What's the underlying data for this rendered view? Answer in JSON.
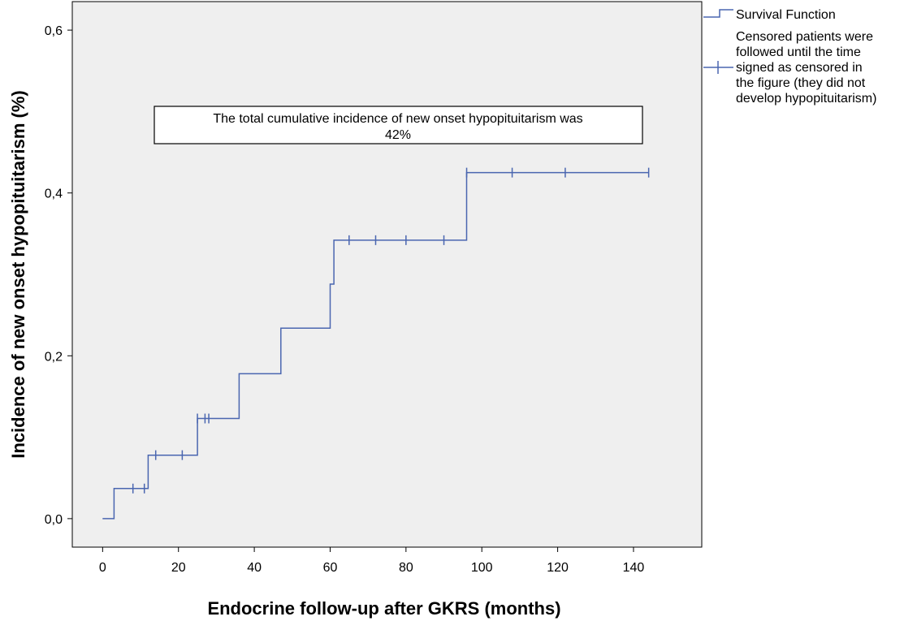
{
  "chart_data": {
    "type": "line",
    "step": true,
    "xlabel": "Endocrine follow-up after GKRS (months)",
    "ylabel": "Incidence of new onset hypopituitarism (%)",
    "xlim": [
      -8,
      158
    ],
    "ylim": [
      -0.035,
      0.635
    ],
    "xticks": [
      0,
      20,
      40,
      60,
      80,
      100,
      120,
      140
    ],
    "xtick_labels": [
      "0",
      "20",
      "40",
      "60",
      "80",
      "100",
      "120",
      "140"
    ],
    "yticks": [
      0.0,
      0.2,
      0.4,
      0.6
    ],
    "ytick_labels": [
      "0,0",
      "0,2",
      "0,4",
      "0,6"
    ],
    "grid": false,
    "plot_background": "#efefef",
    "line_color": "#4a66b0",
    "series": [
      {
        "name": "Survival Function",
        "x": [
          0,
          3,
          12,
          25,
          36,
          47,
          60,
          61,
          96,
          144
        ],
        "y": [
          0.0,
          0.037,
          0.078,
          0.123,
          0.178,
          0.234,
          0.288,
          0.342,
          0.425,
          0.425
        ]
      }
    ],
    "censored": {
      "x": [
        8,
        11,
        14,
        21,
        25,
        27,
        28,
        65,
        72,
        80,
        90,
        96,
        108,
        122,
        144
      ],
      "y": [
        0.037,
        0.037,
        0.078,
        0.078,
        0.123,
        0.123,
        0.123,
        0.342,
        0.342,
        0.342,
        0.342,
        0.425,
        0.425,
        0.425,
        0.425
      ]
    },
    "legend": {
      "position": "right",
      "entries": [
        {
          "label": "Survival Function"
        },
        {
          "label": "Censored patients were followed until the time signed as censored in the figure (they did not develop hypopituitarism)"
        }
      ],
      "censored_lines": [
        "Censored patients were",
        "followed until the time",
        "signed as censored in",
        "the figure (they did not",
        "develop hypopituitarism)"
      ]
    },
    "annotation": {
      "text": "The total cumulative incidence of new onset hypopituitarism was 42%",
      "lines": [
        "The total cumulative incidence of new onset hypopituitarism was",
        "42%"
      ]
    }
  }
}
